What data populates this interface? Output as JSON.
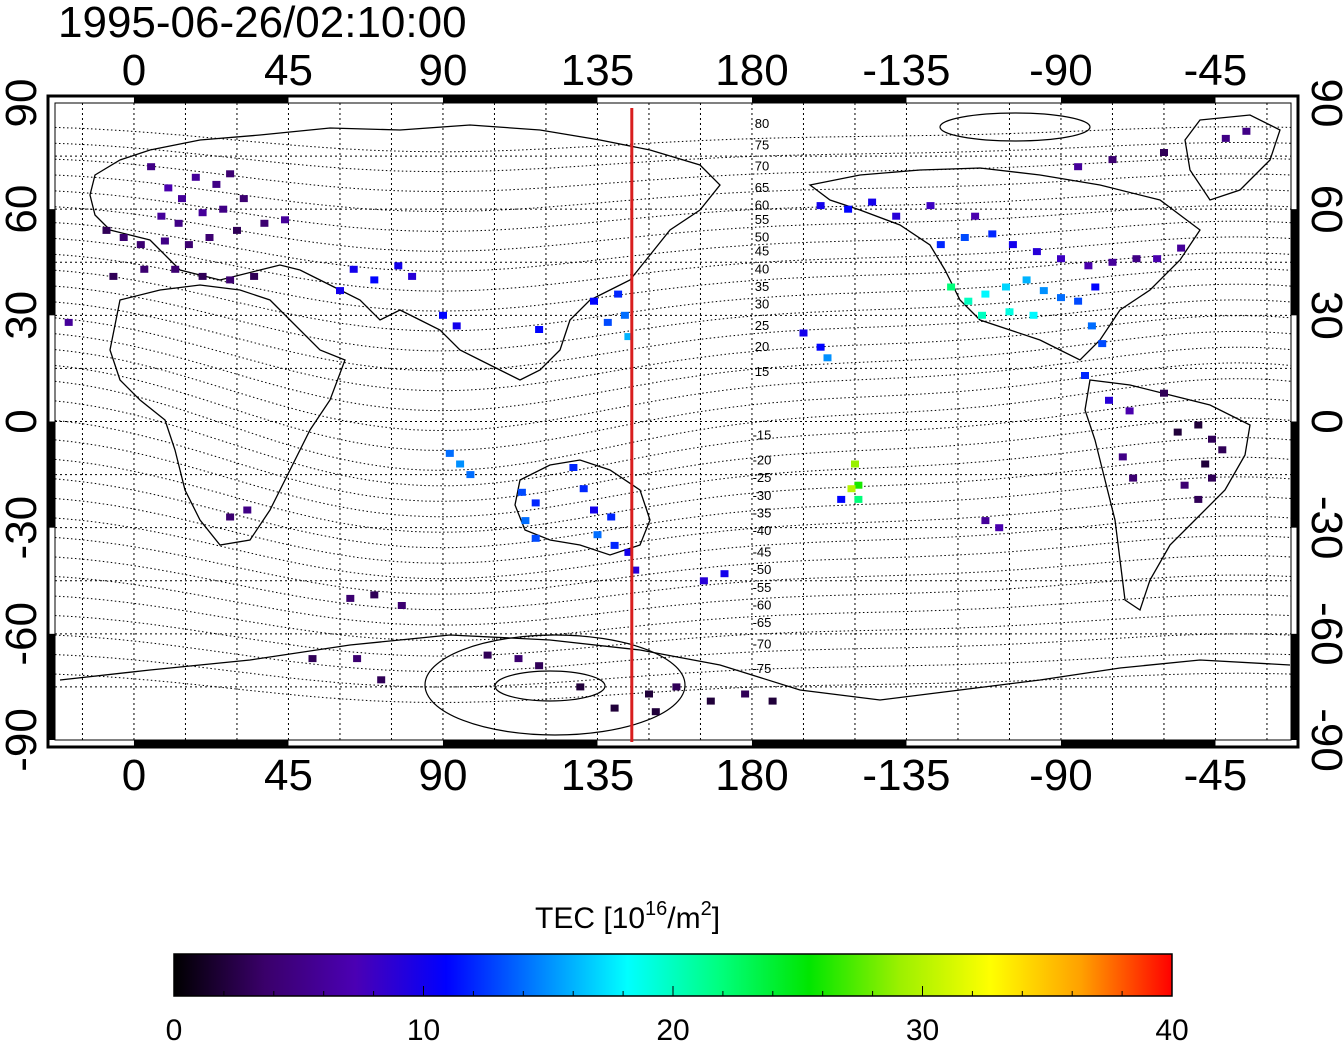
{
  "title": "1995-06-26/02:10:00",
  "map": {
    "top_lon_labels": [
      "0",
      "45",
      "90",
      "135",
      "180",
      "-135",
      "-90",
      "-45"
    ],
    "bottom_lon_labels": [
      "0",
      "45",
      "90",
      "135",
      "180",
      "-135",
      "-90",
      "-45"
    ],
    "left_lat_labels": [
      "90",
      "60",
      "30",
      "0",
      "-30",
      "-60",
      "-90"
    ],
    "right_lat_labels": [
      "90",
      "60",
      "30",
      "0",
      "-30",
      "-60",
      "-90"
    ],
    "lon_range": [
      -23,
      337
    ],
    "lat_range": [
      -90,
      90
    ],
    "grid_step_lon": 15,
    "grid_step_lat": 15,
    "grid": "dotted",
    "meridian_marker_lon": 145,
    "meridian_marker_color": "#d81e1e",
    "contour_labels": [
      "80",
      "75",
      "70",
      "65",
      "60",
      "55",
      "50",
      "45",
      "40",
      "35",
      "30",
      "25",
      "20",
      "15",
      "-15",
      "-20",
      "-25",
      "-30",
      "-35",
      "-40",
      "-45",
      "-50",
      "-55",
      "-60",
      "-65",
      "-70",
      "-75"
    ]
  },
  "colorbar": {
    "label_text": "TEC  [10",
    "label_sup1": "16",
    "label_mid": "/m",
    "label_sup2": "2",
    "label_end": "]",
    "tick_labels": [
      "0",
      "10",
      "20",
      "30",
      "40"
    ],
    "range": [
      0,
      40
    ],
    "colormap": [
      "#000000",
      "#3a006a",
      "#4b00b4",
      "#0000ff",
      "#0080ff",
      "#00ffff",
      "#00ff80",
      "#00e600",
      "#9cf000",
      "#ffff00",
      "#ffa000",
      "#ff0000"
    ]
  },
  "tec_points": [
    {
      "lon": 5,
      "lat": 72,
      "tec": 5
    },
    {
      "lon": 10,
      "lat": 66,
      "tec": 7
    },
    {
      "lon": 14,
      "lat": 63,
      "tec": 6
    },
    {
      "lon": 18,
      "lat": 69,
      "tec": 6
    },
    {
      "lon": 24,
      "lat": 67,
      "tec": 5
    },
    {
      "lon": 28,
      "lat": 70,
      "tec": 4
    },
    {
      "lon": 8,
      "lat": 58,
      "tec": 6
    },
    {
      "lon": 13,
      "lat": 56,
      "tec": 5
    },
    {
      "lon": 20,
      "lat": 59,
      "tec": 6
    },
    {
      "lon": 26,
      "lat": 60,
      "tec": 5
    },
    {
      "lon": 32,
      "lat": 63,
      "tec": 4
    },
    {
      "lon": -8,
      "lat": 54,
      "tec": 3
    },
    {
      "lon": -3,
      "lat": 52,
      "tec": 4
    },
    {
      "lon": 2,
      "lat": 50,
      "tec": 4
    },
    {
      "lon": 9,
      "lat": 51,
      "tec": 5
    },
    {
      "lon": 16,
      "lat": 50,
      "tec": 4
    },
    {
      "lon": 22,
      "lat": 52,
      "tec": 4
    },
    {
      "lon": 30,
      "lat": 54,
      "tec": 3
    },
    {
      "lon": 38,
      "lat": 56,
      "tec": 4
    },
    {
      "lon": -6,
      "lat": 41,
      "tec": 3
    },
    {
      "lon": 3,
      "lat": 43,
      "tec": 4
    },
    {
      "lon": 12,
      "lat": 43,
      "tec": 4
    },
    {
      "lon": 20,
      "lat": 41,
      "tec": 3
    },
    {
      "lon": 28,
      "lat": 40,
      "tec": 4
    },
    {
      "lon": 35,
      "lat": 41,
      "tec": 3
    },
    {
      "lon": 44,
      "lat": 57,
      "tec": 6
    },
    {
      "lon": -19,
      "lat": 28,
      "tec": 6
    },
    {
      "lon": 64,
      "lat": 43,
      "tec": 10
    },
    {
      "lon": 70,
      "lat": 40,
      "tec": 11
    },
    {
      "lon": 77,
      "lat": 44,
      "tec": 10
    },
    {
      "lon": 81,
      "lat": 41,
      "tec": 9
    },
    {
      "lon": 60,
      "lat": 37,
      "tec": 10
    },
    {
      "lon": 90,
      "lat": 30,
      "tec": 11
    },
    {
      "lon": 94,
      "lat": 27,
      "tec": 10
    },
    {
      "lon": 118,
      "lat": 26,
      "tec": 11
    },
    {
      "lon": 134,
      "lat": 34,
      "tec": 11
    },
    {
      "lon": 141,
      "lat": 36,
      "tec": 12
    },
    {
      "lon": 138,
      "lat": 28,
      "tec": 13
    },
    {
      "lon": 143,
      "lat": 30,
      "tec": 14
    },
    {
      "lon": 144,
      "lat": 24,
      "tec": 16
    },
    {
      "lon": 92,
      "lat": -9,
      "tec": 14
    },
    {
      "lon": 95,
      "lat": -12,
      "tec": 15
    },
    {
      "lon": 98,
      "lat": -15,
      "tec": 14
    },
    {
      "lon": 113,
      "lat": -20,
      "tec": 13
    },
    {
      "lon": 117,
      "lat": -23,
      "tec": 12
    },
    {
      "lon": 114,
      "lat": -28,
      "tec": 14
    },
    {
      "lon": 117,
      "lat": -33,
      "tec": 13
    },
    {
      "lon": 128,
      "lat": -13,
      "tec": 12
    },
    {
      "lon": 131,
      "lat": -19,
      "tec": 12
    },
    {
      "lon": 134,
      "lat": -25,
      "tec": 10
    },
    {
      "lon": 139,
      "lat": -27,
      "tec": 12
    },
    {
      "lon": 135,
      "lat": -32,
      "tec": 14
    },
    {
      "lon": 140,
      "lat": -35,
      "tec": 12
    },
    {
      "lon": 144,
      "lat": -37,
      "tec": 10
    },
    {
      "lon": 146,
      "lat": -42,
      "tec": 9
    },
    {
      "lon": 166,
      "lat": -45,
      "tec": 9
    },
    {
      "lon": 172,
      "lat": -43,
      "tec": 10
    },
    {
      "lon": 33,
      "lat": -25,
      "tec": 5
    },
    {
      "lon": 28,
      "lat": -27,
      "tec": 4
    },
    {
      "lon": 63,
      "lat": -50,
      "tec": 4
    },
    {
      "lon": 70,
      "lat": -49,
      "tec": 3
    },
    {
      "lon": 78,
      "lat": -52,
      "tec": 4
    },
    {
      "lon": 52,
      "lat": -67,
      "tec": 3
    },
    {
      "lon": 65,
      "lat": -67,
      "tec": 4
    },
    {
      "lon": 72,
      "lat": -73,
      "tec": 3
    },
    {
      "lon": 103,
      "lat": -66,
      "tec": 3
    },
    {
      "lon": 112,
      "lat": -67,
      "tec": 4
    },
    {
      "lon": 118,
      "lat": -69,
      "tec": 3
    },
    {
      "lon": 130,
      "lat": -75,
      "tec": 2
    },
    {
      "lon": 150,
      "lat": -77,
      "tec": 2
    },
    {
      "lon": 158,
      "lat": -75,
      "tec": 3
    },
    {
      "lon": 168,
      "lat": -79,
      "tec": 2
    },
    {
      "lon": 178,
      "lat": -77,
      "tec": 3
    },
    {
      "lon": 186,
      "lat": -79,
      "tec": 2
    },
    {
      "lon": 140,
      "lat": -81,
      "tec": 2
    },
    {
      "lon": 152,
      "lat": -82,
      "tec": 2
    },
    {
      "lon": -160,
      "lat": 61,
      "tec": 10
    },
    {
      "lon": -152,
      "lat": 60,
      "tec": 11
    },
    {
      "lon": -145,
      "lat": 62,
      "tec": 10
    },
    {
      "lon": -138,
      "lat": 58,
      "tec": 9
    },
    {
      "lon": -128,
      "lat": 61,
      "tec": 8
    },
    {
      "lon": -115,
      "lat": 58,
      "tec": 7
    },
    {
      "lon": -125,
      "lat": 50,
      "tec": 12
    },
    {
      "lon": -118,
      "lat": 52,
      "tec": 13
    },
    {
      "lon": -110,
      "lat": 53,
      "tec": 12
    },
    {
      "lon": -104,
      "lat": 50,
      "tec": 10
    },
    {
      "lon": -97,
      "lat": 48,
      "tec": 9
    },
    {
      "lon": -90,
      "lat": 46,
      "tec": 8
    },
    {
      "lon": -82,
      "lat": 44,
      "tec": 7
    },
    {
      "lon": -75,
      "lat": 45,
      "tec": 6
    },
    {
      "lon": -68,
      "lat": 46,
      "tec": 5
    },
    {
      "lon": -122,
      "lat": 38,
      "tec": 22
    },
    {
      "lon": -117,
      "lat": 34,
      "tec": 20
    },
    {
      "lon": -112,
      "lat": 36,
      "tec": 18
    },
    {
      "lon": -106,
      "lat": 38,
      "tec": 17
    },
    {
      "lon": -100,
      "lat": 40,
      "tec": 16
    },
    {
      "lon": -95,
      "lat": 37,
      "tec": 15
    },
    {
      "lon": -90,
      "lat": 35,
      "tec": 14
    },
    {
      "lon": -85,
      "lat": 34,
      "tec": 13
    },
    {
      "lon": -80,
      "lat": 38,
      "tec": 11
    },
    {
      "lon": -113,
      "lat": 30,
      "tec": 20
    },
    {
      "lon": -105,
      "lat": 31,
      "tec": 19
    },
    {
      "lon": -98,
      "lat": 30,
      "tec": 18
    },
    {
      "lon": -81,
      "lat": 27,
      "tec": 14
    },
    {
      "lon": -78,
      "lat": 22,
      "tec": 13
    },
    {
      "lon": -83,
      "lat": 13,
      "tec": 12
    },
    {
      "lon": -76,
      "lat": 6,
      "tec": 9
    },
    {
      "lon": -70,
      "lat": 3,
      "tec": 7
    },
    {
      "lon": -72,
      "lat": -10,
      "tec": 5
    },
    {
      "lon": -69,
      "lat": -16,
      "tec": 4
    },
    {
      "lon": -60,
      "lat": 8,
      "tec": 3
    },
    {
      "lon": -56,
      "lat": -3,
      "tec": 2
    },
    {
      "lon": -50,
      "lat": -1,
      "tec": 2
    },
    {
      "lon": -46,
      "lat": -5,
      "tec": 3
    },
    {
      "lon": -43,
      "lat": -8,
      "tec": 3
    },
    {
      "lon": -48,
      "lat": -12,
      "tec": 2
    },
    {
      "lon": -54,
      "lat": -18,
      "tec": 4
    },
    {
      "lon": -50,
      "lat": -22,
      "tec": 3
    },
    {
      "lon": -46,
      "lat": -16,
      "tec": 3
    },
    {
      "lon": -112,
      "lat": -28,
      "tec": 6
    },
    {
      "lon": -108,
      "lat": -30,
      "tec": 7
    },
    {
      "lon": -165,
      "lat": 25,
      "tec": 10
    },
    {
      "lon": -160,
      "lat": 21,
      "tec": 11
    },
    {
      "lon": -158,
      "lat": 18,
      "tec": 15
    },
    {
      "lon": -150,
      "lat": -12,
      "tec": 29
    },
    {
      "lon": -149,
      "lat": -18,
      "tec": 26
    },
    {
      "lon": -151,
      "lat": -19,
      "tec": 30
    },
    {
      "lon": -149,
      "lat": -22,
      "tec": 22
    },
    {
      "lon": -154,
      "lat": -22,
      "tec": 11
    },
    {
      "lon": -85,
      "lat": 72,
      "tec": 6
    },
    {
      "lon": -75,
      "lat": 74,
      "tec": 4
    },
    {
      "lon": -60,
      "lat": 76,
      "tec": 3
    },
    {
      "lon": -42,
      "lat": 80,
      "tec": 5
    },
    {
      "lon": -36,
      "lat": 82,
      "tec": 5
    },
    {
      "lon": -55,
      "lat": 49,
      "tec": 6
    },
    {
      "lon": -62,
      "lat": 46,
      "tec": 7
    }
  ]
}
